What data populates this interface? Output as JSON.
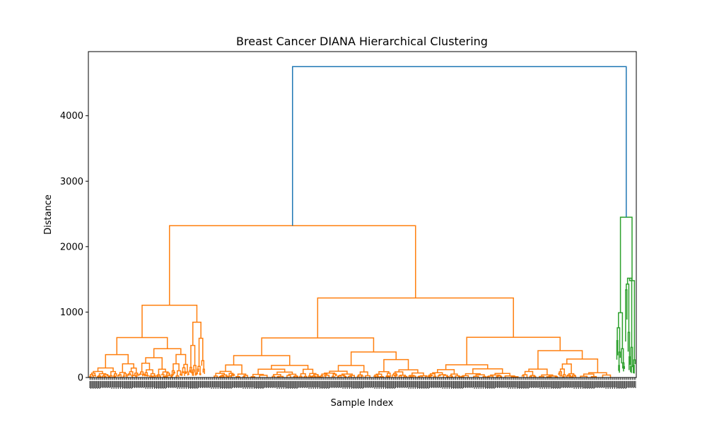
{
  "chart_data": {
    "type": "dendrogram",
    "title": "Breast Cancer DIANA Hierarchical Clustering",
    "xlabel": "Sample Index",
    "ylabel": "Distance",
    "ylim": [
      0,
      4980
    ],
    "y_ticks": [
      0,
      1000,
      2000,
      3000,
      4000
    ],
    "grid": false,
    "leaf_labels_note": "leaf sample indices along the x-axis are printed rotated and too dense to read",
    "colors": {
      "root_link": "#1f77b4",
      "cluster_1": "#ff7f0e",
      "cluster_2": "#2ca02c"
    },
    "root_merge": {
      "height": 4750,
      "children": [
        "cluster_1",
        "cluster_2"
      ]
    },
    "clusters": [
      {
        "id": "cluster_1",
        "color": "#ff7f0e",
        "top_height": 2320,
        "subclusters": [
          {
            "height": 1105,
            "children": [
              {
                "height": 610,
                "children_heights": [
                  350,
                  440
                ]
              },
              {
                "height": 845,
                "children_heights": [
                  490,
                  600
                ]
              }
            ]
          },
          {
            "height": 1215,
            "children": [
              {
                "height": 605,
                "children_heights": [
                  335,
                  390
                ]
              },
              {
                "height": 615,
                "children_heights": [
                  195,
                  410
                ]
              }
            ]
          }
        ]
      },
      {
        "id": "cluster_2",
        "color": "#2ca02c",
        "top_height": 2450,
        "subclusters": [
          {
            "height": 990,
            "children_heights": [
              760,
              440
            ]
          },
          {
            "height": 1480,
            "children_heights": [
              1340,
              690,
              460,
              270
            ]
          }
        ]
      }
    ]
  }
}
